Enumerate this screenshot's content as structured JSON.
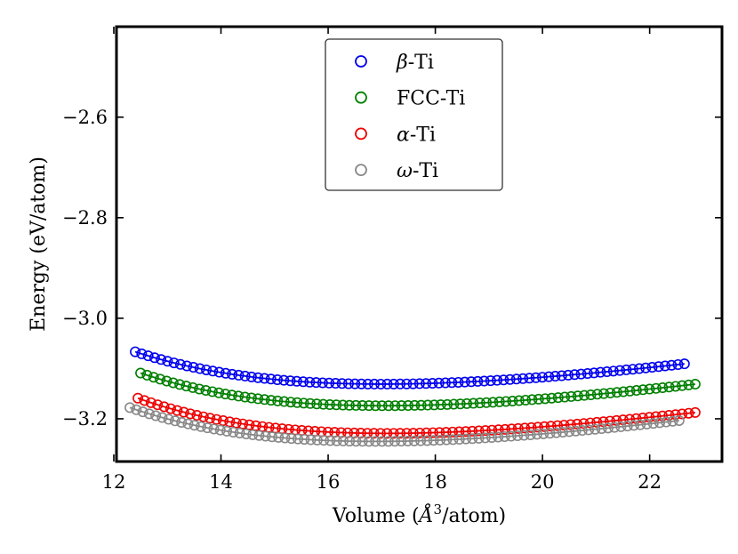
{
  "chart_data": {
    "type": "scatter",
    "title": "",
    "xlabel": "Volume (Å³/atom)",
    "xlabel_prefix": "Volume (",
    "xlabel_unit": "Å",
    "xlabel_exp": "3",
    "xlabel_suffix": "/atom)",
    "ylabel": "Energy (eV/atom)",
    "xlim": [
      12.05,
      23.35
    ],
    "ylim": [
      -3.285,
      -2.42
    ],
    "xticks": [
      12,
      14,
      16,
      18,
      20,
      22
    ],
    "xtick_labels": [
      "12",
      "14",
      "16",
      "18",
      "20",
      "22"
    ],
    "yticks": [
      -2.6,
      -2.8,
      -3.0,
      -3.2
    ],
    "ytick_labels": [
      "−2.6",
      "−2.8",
      "−3.0",
      "−3.2"
    ],
    "grid": false,
    "legend_position": "top-center",
    "series": [
      {
        "name": "β-Ti",
        "greek": "β",
        "suffix": "-Ti",
        "color": "#0000ee",
        "x_range": [
          12.4,
          22.65
        ],
        "E0": -3.131,
        "V0": 17.0,
        "B": 0.066,
        "Bp": 3.4
      },
      {
        "name": "FCC-Ti",
        "greek": "",
        "suffix": "FCC-Ti",
        "color": "#007f00",
        "x_range": [
          12.5,
          22.85
        ],
        "E0": -3.174,
        "V0": 17.05,
        "B": 0.068,
        "Bp": 3.5
      },
      {
        "name": "α-Ti",
        "greek": "α",
        "suffix": "-Ti",
        "color": "#ee0000",
        "x_range": [
          12.45,
          22.85
        ],
        "E0": -3.229,
        "V0": 17.1,
        "B": 0.068,
        "Bp": 3.7
      },
      {
        "name": "ω-Ti",
        "greek": "ω",
        "suffix": "-Ti",
        "color": "#888888",
        "x_range": [
          12.3,
          22.55
        ],
        "E0": -3.245,
        "V0": 16.9,
        "B": 0.068,
        "Bp": 3.45
      }
    ]
  }
}
